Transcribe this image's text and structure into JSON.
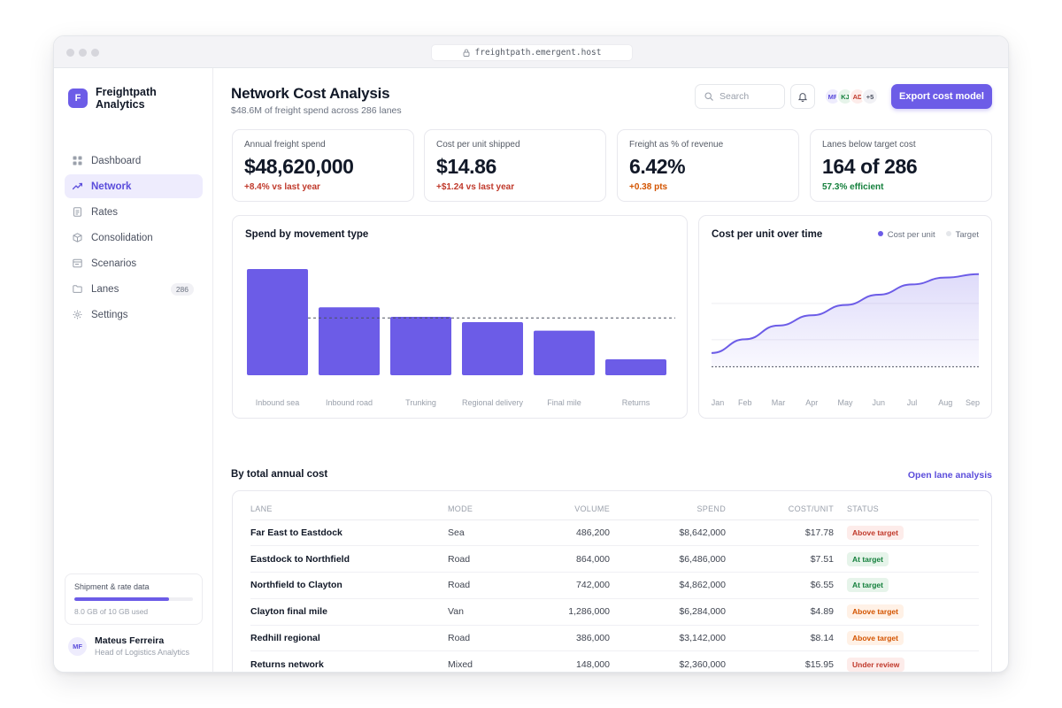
{
  "browser": {
    "url": "freightpath.emergent.host"
  },
  "sidebar": {
    "brand": "Freightpath Analytics",
    "brand_initial": "F",
    "items": [
      {
        "label": "Dashboard",
        "icon": "grid-icon"
      },
      {
        "label": "Network",
        "icon": "trend-icon",
        "active": true
      },
      {
        "label": "Rates",
        "icon": "document-icon"
      },
      {
        "label": "Consolidation",
        "icon": "box-icon"
      },
      {
        "label": "Scenarios",
        "icon": "layout-icon"
      },
      {
        "label": "Lanes",
        "icon": "folder-icon",
        "count": "286"
      },
      {
        "label": "Settings",
        "icon": "gear-icon"
      }
    ],
    "storage": {
      "title": "Shipment & rate data",
      "used_label": "8.0 GB of 10 GB used",
      "fraction": 0.8
    },
    "user": {
      "initials": "MF",
      "name": "Mateus Ferreira",
      "role": "Head of Logistics Analytics"
    }
  },
  "header": {
    "title": "Network Cost Analysis",
    "subtitle": "$48.6M of freight spend across 286 lanes",
    "search_placeholder": "Search",
    "avatars": [
      "MF",
      "KJ",
      "AD"
    ],
    "avatars_more": "+5",
    "export_label": "Export cost model"
  },
  "kpis": [
    {
      "label": "Annual freight spend",
      "value": "$48,620,000",
      "delta": "+8.4% vs last year",
      "tone": "negative"
    },
    {
      "label": "Cost per unit shipped",
      "value": "$14.86",
      "delta": "+$1.24 vs last year",
      "tone": "negative"
    },
    {
      "label": "Freight as % of revenue",
      "value": "6.42%",
      "delta": "+0.38 pts",
      "tone": "warning"
    },
    {
      "label": "Lanes below target cost",
      "value": "164 of 286",
      "delta": "57.3% efficient",
      "tone": "positive"
    }
  ],
  "charts": {
    "spend_title": "Spend by movement type",
    "trend_title": "Cost per unit over time",
    "trend_legend": [
      "Cost per unit",
      "Target"
    ]
  },
  "chart_data": [
    {
      "type": "bar",
      "title": "Spend by movement type",
      "categories": [
        "Inbound sea",
        "Inbound road",
        "Trunking",
        "Regional delivery",
        "Final mile",
        "Returns"
      ],
      "values": [
        100,
        64,
        55,
        50,
        42,
        15
      ],
      "reference_line": 54,
      "ylim": [
        0,
        100
      ],
      "grid": false
    },
    {
      "type": "area",
      "title": "Cost per unit over time",
      "categories": [
        "Jan",
        "Feb",
        "Mar",
        "Apr",
        "May",
        "Jun",
        "Jul",
        "Aug",
        "Sep"
      ],
      "series": [
        {
          "name": "Cost per unit",
          "values": [
            12.9,
            13.3,
            13.7,
            14.0,
            14.3,
            14.6,
            14.9,
            15.1,
            15.2
          ]
        },
        {
          "name": "Target",
          "values": [
            12.5,
            12.5,
            12.5,
            12.5,
            12.5,
            12.5,
            12.5,
            12.5,
            12.5
          ]
        }
      ],
      "ylim": [
        12.2,
        15.4
      ],
      "legend": "top-right",
      "grid": true
    }
  ],
  "table": {
    "section_title": "By total annual cost",
    "link_label": "Open lane analysis",
    "columns": [
      "LANE",
      "MODE",
      "VOLUME",
      "SPEND",
      "COST/UNIT",
      "STATUS"
    ],
    "rows": [
      {
        "lane": "Far East to Eastdock",
        "mode": "Sea",
        "volume": "486,200",
        "spend": "$8,642,000",
        "cpu": "$17.78",
        "status": "Above target",
        "status_kind": "above"
      },
      {
        "lane": "Eastdock to Northfield",
        "mode": "Road",
        "volume": "864,000",
        "spend": "$6,486,000",
        "cpu": "$7.51",
        "status": "At target",
        "status_kind": "at"
      },
      {
        "lane": "Northfield to Clayton",
        "mode": "Road",
        "volume": "742,000",
        "spend": "$4,862,000",
        "cpu": "$6.55",
        "status": "At target",
        "status_kind": "at"
      },
      {
        "lane": "Clayton final mile",
        "mode": "Van",
        "volume": "1,286,000",
        "spend": "$6,284,000",
        "cpu": "$4.89",
        "status": "Above target",
        "status_kind": "warn"
      },
      {
        "lane": "Redhill regional",
        "mode": "Road",
        "volume": "386,000",
        "spend": "$3,142,000",
        "cpu": "$8.14",
        "status": "Above target",
        "status_kind": "warn"
      },
      {
        "lane": "Returns network",
        "mode": "Mixed",
        "volume": "148,000",
        "spend": "$2,360,000",
        "cpu": "$15.95",
        "status": "Under review",
        "status_kind": "review"
      }
    ]
  },
  "colors": {
    "accent": "#6c5ce7",
    "negative": "#c0392b",
    "warning": "#d35400",
    "positive": "#15803d"
  }
}
